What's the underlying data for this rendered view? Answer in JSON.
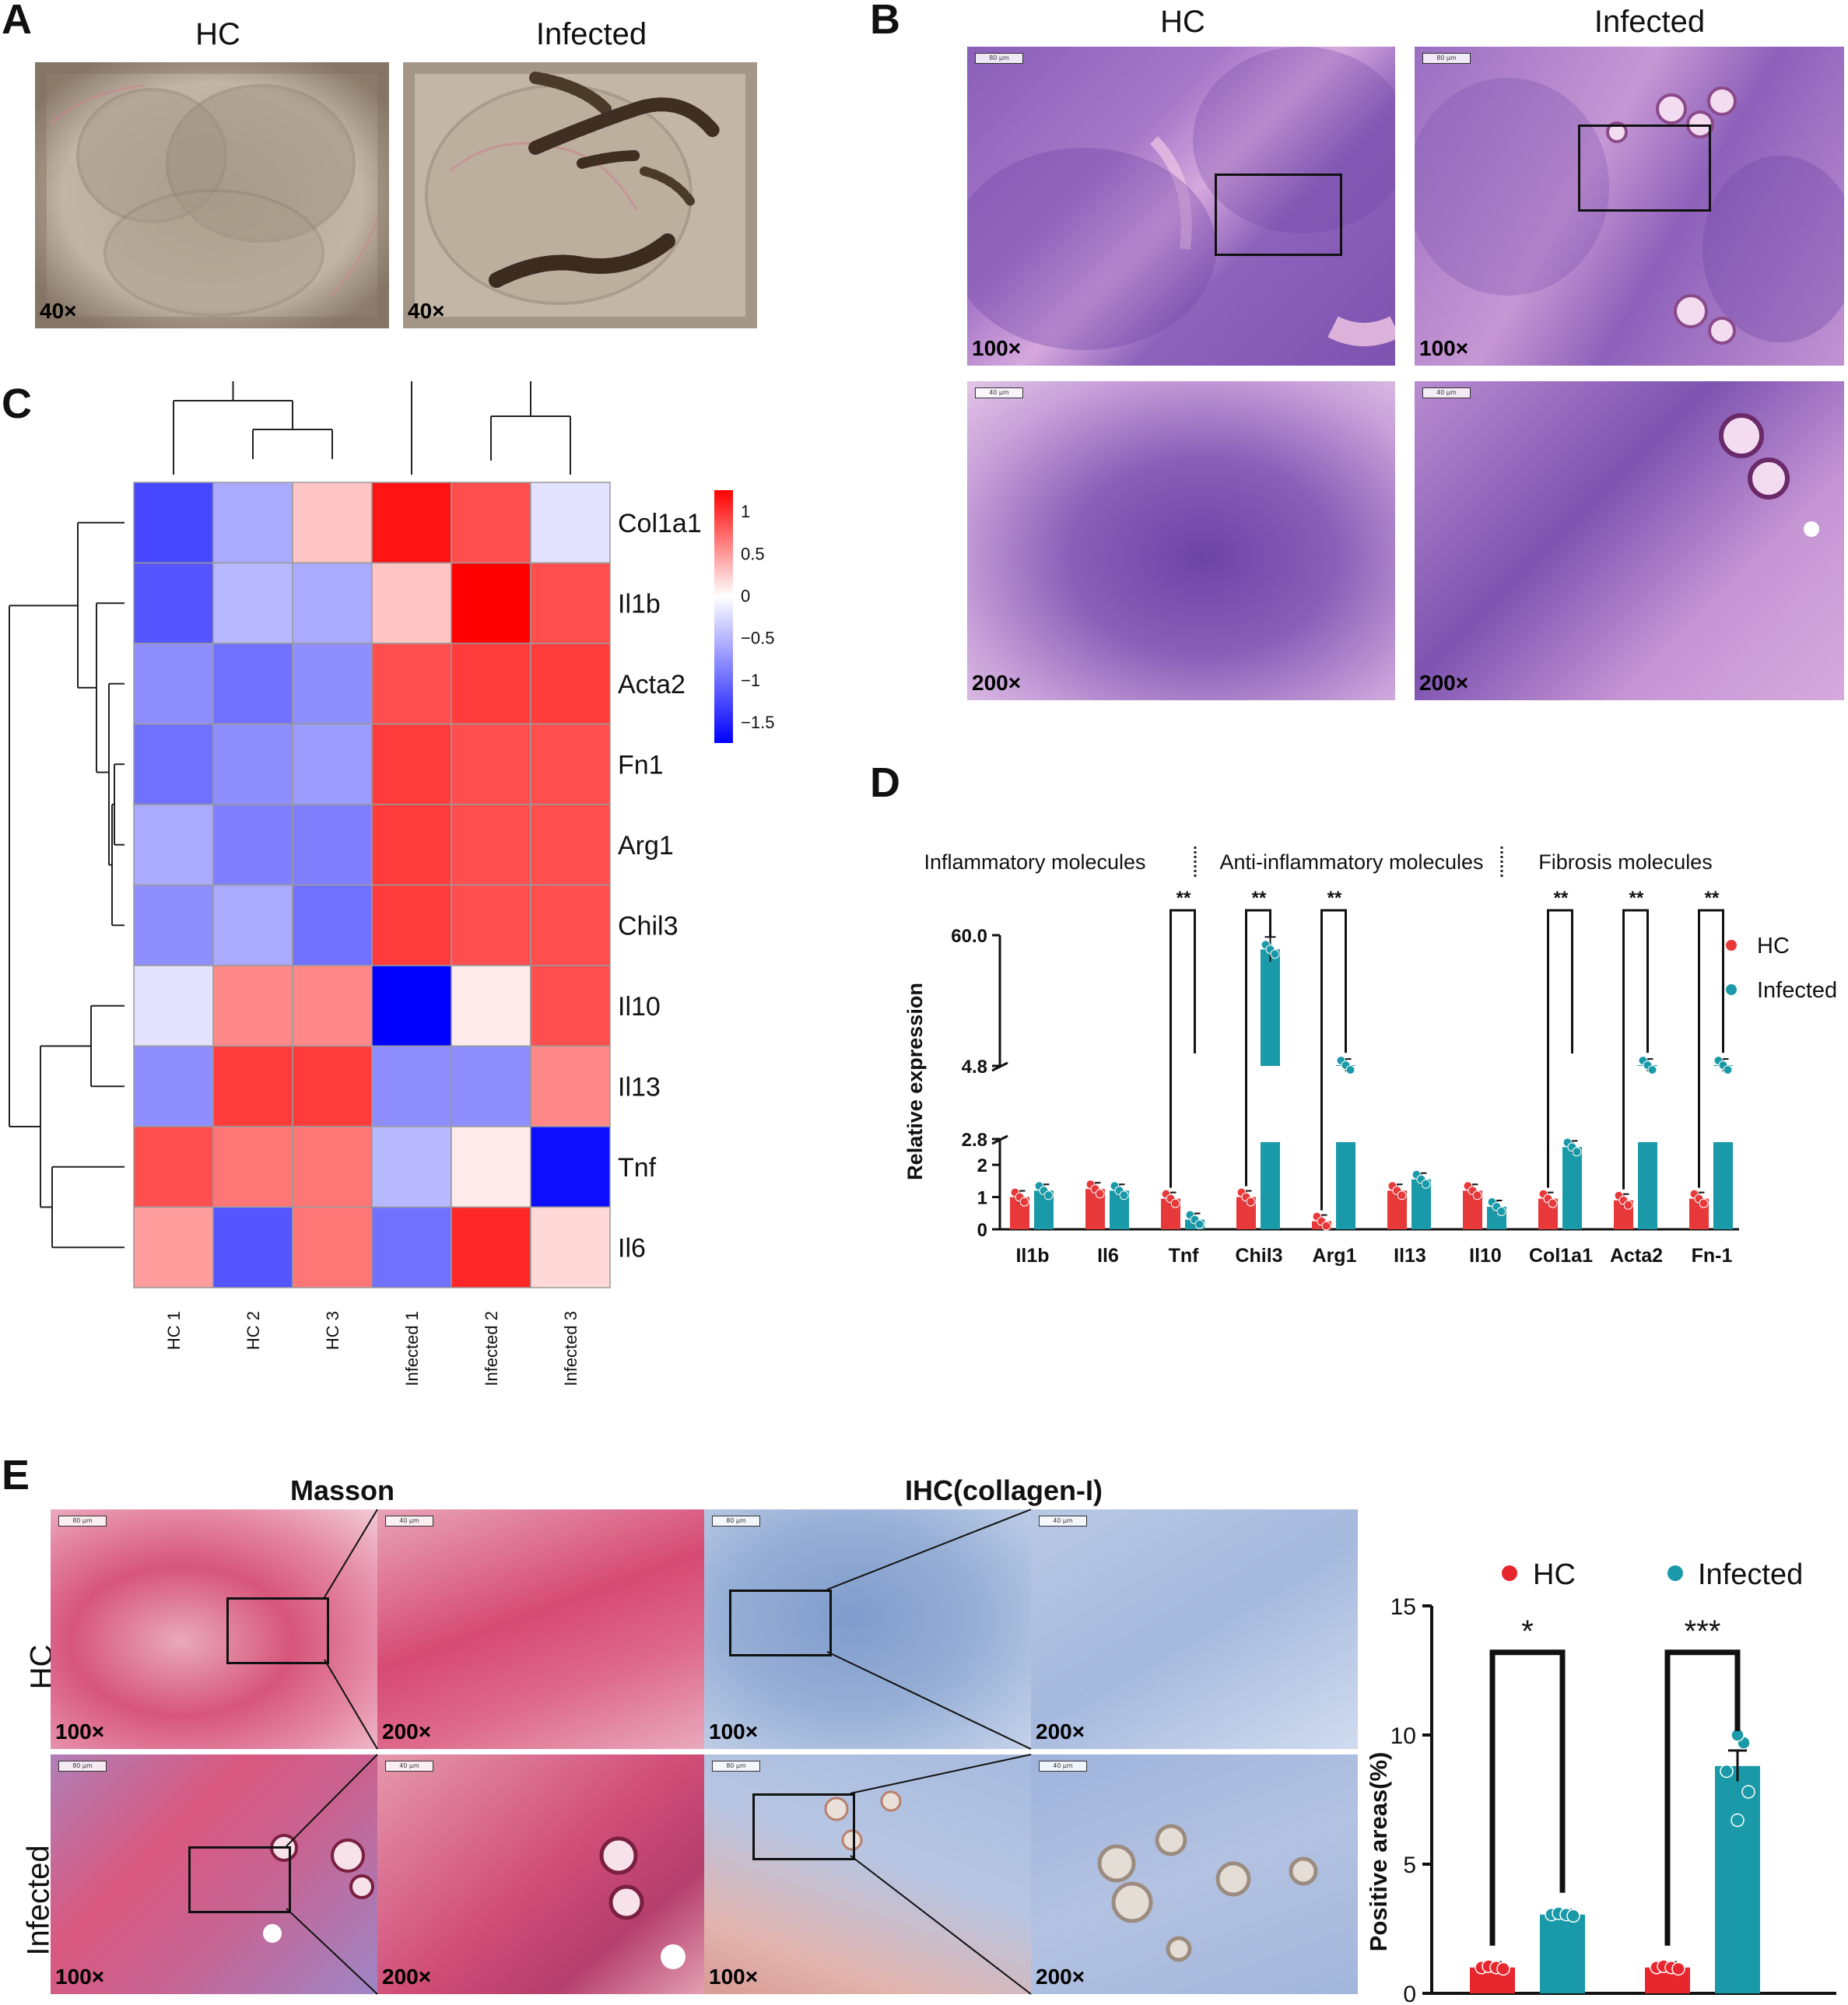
{
  "panels": {
    "A": {
      "label": "A",
      "titles": [
        "HC",
        "Infected"
      ],
      "mags": [
        "40×",
        "40×"
      ]
    },
    "B": {
      "label": "B",
      "titles": [
        "HC",
        "Infected"
      ],
      "mags": [
        "100×",
        "100×",
        "200×",
        "200×"
      ],
      "scales": [
        "80 μm",
        "80 μm",
        "40 μm",
        "40 μm"
      ]
    },
    "C": {
      "label": "C"
    },
    "D": {
      "label": "D"
    },
    "E": {
      "label": "E",
      "titles": [
        "Masson",
        "IHC(collagen-I)"
      ],
      "rows": [
        "HC",
        "Infected"
      ],
      "mags": [
        "100×",
        "200×",
        "100×",
        "200×",
        "100×",
        "200×",
        "100×",
        "200×"
      ],
      "scales": [
        "80 μm",
        "40 μm",
        "80 μm",
        "40 μm",
        "80 μm",
        "40 μm",
        "80 μm",
        "40 μm"
      ]
    }
  },
  "chart_data": [
    {
      "type": "heatmap",
      "columns": [
        "HC 1",
        "HC 2",
        "HC 3",
        "Infected 1",
        "Infected 2",
        "Infected 3"
      ],
      "rows": [
        "Col1a1",
        "Il1b",
        "Acta2",
        "Fn1",
        "Arg1",
        "Chil3",
        "Il10",
        "Il13",
        "Tnf",
        "Il6"
      ],
      "values": [
        [
          -1.3,
          -0.6,
          0.3,
          1.2,
          0.9,
          -0.2
        ],
        [
          -1.2,
          -0.5,
          -0.6,
          0.3,
          1.3,
          0.9
        ],
        [
          -0.8,
          -1.0,
          -0.8,
          0.9,
          1.0,
          1.0
        ],
        [
          -1.0,
          -0.8,
          -0.7,
          1.0,
          0.9,
          0.9
        ],
        [
          -0.6,
          -0.9,
          -0.9,
          1.0,
          0.9,
          0.9
        ],
        [
          -0.8,
          -0.6,
          -1.0,
          1.0,
          0.9,
          0.9
        ],
        [
          -0.2,
          0.6,
          0.6,
          -1.8,
          0.1,
          0.9
        ],
        [
          -0.8,
          1.0,
          1.0,
          -0.8,
          -0.8,
          0.6
        ],
        [
          0.9,
          0.7,
          0.7,
          -0.5,
          0.1,
          -1.7
        ],
        [
          0.5,
          -1.2,
          0.7,
          -1.0,
          1.1,
          0.2
        ]
      ],
      "colorbar_ticks": [
        "1",
        "0.5",
        "0",
        "−0.5",
        "−1",
        "−1.5"
      ],
      "colors": {
        "high": "#ff0000",
        "mid": "#ffffff",
        "low": "#0000ff"
      }
    },
    {
      "type": "bar",
      "categories": [
        "Il1b",
        "Il6",
        "Tnf",
        "Chil3",
        "Arg1",
        "Il13",
        "Il10",
        "Col1a1",
        "Acta2",
        "Fn-1"
      ],
      "groups": [
        "Inflammatory molecules",
        "Anti-inflammatory molecules",
        "Fibrosis molecules"
      ],
      "series": [
        {
          "name": "HC",
          "color": "#e8393a",
          "values": [
            1.0,
            1.25,
            0.95,
            1.0,
            0.25,
            1.2,
            1.2,
            0.95,
            0.9,
            0.95
          ]
        },
        {
          "name": "Infected",
          "color": "#1a9aa8",
          "values": [
            1.2,
            1.2,
            0.3,
            54.0,
            5.1,
            1.55,
            0.7,
            2.55,
            5.1,
            5.1
          ]
        }
      ],
      "significance": [
        "",
        "",
        "**",
        "**",
        "**",
        "",
        "",
        "**",
        "**",
        "**"
      ],
      "ylabel": "Relative expression",
      "y_ticks_lower": [
        "0",
        "1",
        "2",
        "2.8"
      ],
      "y_ticks_upper": [
        "4.8",
        "60.0"
      ],
      "axis_break": true
    },
    {
      "type": "bar",
      "categories": [
        "Masson",
        "IHC（collagen-I)"
      ],
      "series": [
        {
          "name": "HC",
          "color": "#e8262e",
          "values": [
            1.0,
            1.0
          ]
        },
        {
          "name": "Infected",
          "color": "#1a9aa8",
          "values": [
            3.05,
            8.8
          ]
        }
      ],
      "significance": [
        "*",
        "***"
      ],
      "ylabel": "Positive areas(%)",
      "ylim": [
        0,
        15
      ],
      "y_ticks": [
        "0",
        "5",
        "10",
        "15"
      ]
    }
  ]
}
